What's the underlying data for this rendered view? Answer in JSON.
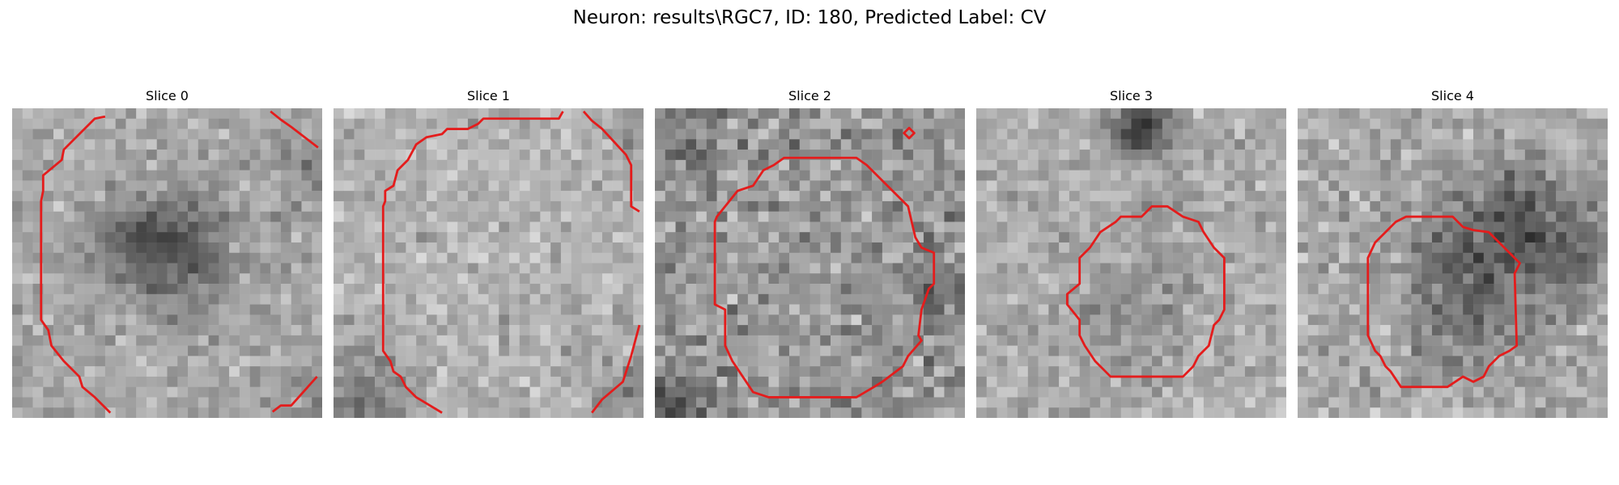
{
  "figure": {
    "title": "Neuron: results\\RGC7, ID: 180, Predicted Label: CV"
  },
  "panels": [
    {
      "title": "Slice 0",
      "contour_color": "#e41c1c"
    },
    {
      "title": "Slice 1",
      "contour_color": "#e41c1c"
    },
    {
      "title": "Slice 2",
      "contour_color": "#e41c1c"
    },
    {
      "title": "Slice 3",
      "contour_color": "#e41c1c"
    },
    {
      "title": "Slice 4",
      "contour_color": "#e41c1c"
    }
  ]
}
